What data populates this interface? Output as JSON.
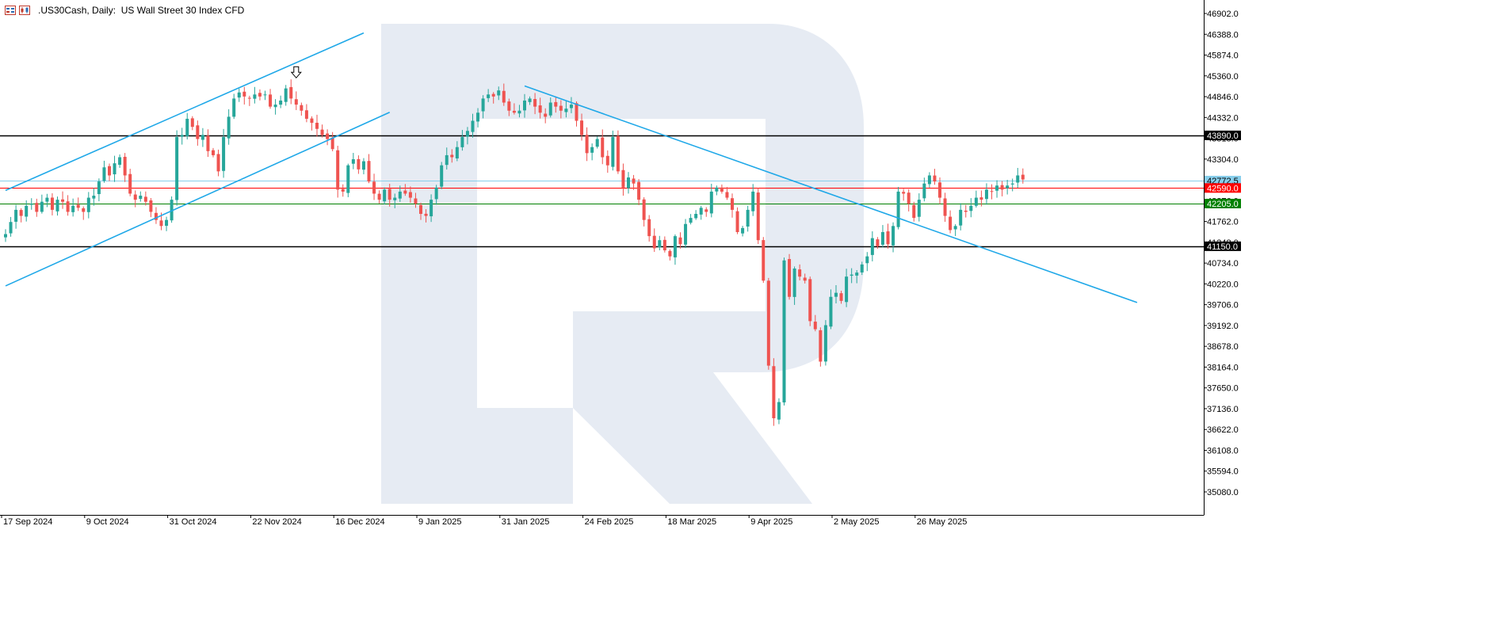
{
  "header": {
    "symbol": ".US30Cash",
    "timeframe": "Daily",
    "description": "US Wall Street 30 Index CFD",
    "title": ".US30Cash, Daily:  US Wall Street 30 Index CFD"
  },
  "colors": {
    "bull": "#26a69a",
    "bear": "#ef5350",
    "trendline": "#1fa8e8",
    "hline_black": "#000000",
    "hline_red": "#ff0000",
    "hline_green": "#008000",
    "hline_cyan": "#87ceeb",
    "watermark": "#e6ebf3",
    "axis": "#000000"
  },
  "chart_data": {
    "type": "candlestick",
    "yaxis": {
      "ticks": [
        46902.0,
        46388.0,
        45874.0,
        45360.0,
        44846.0,
        44332.0,
        43818.0,
        43304.0,
        42790.0,
        42276.0,
        41762.0,
        41248.0,
        40734.0,
        40220.0,
        39706.0,
        39192.0,
        38678.0,
        38164.0,
        37650.0,
        37136.0,
        36622.0,
        36108.0,
        35594.0,
        35080.0
      ],
      "tick_labels": [
        "46902.0",
        "46388.0",
        "45874.0",
        "45360.0",
        "44846.0",
        "44332.0",
        "43818.0",
        "43304.0",
        "42790.0",
        "42276.0",
        "41762.0",
        "41248.0",
        "40734.0",
        "40220.0",
        "39706.0",
        "39192.0",
        "38678.0",
        "38164.0",
        "37650.0",
        "37136.0",
        "36622.0",
        "36108.0",
        "35594.0",
        "35080.0"
      ]
    },
    "xaxis": {
      "labels": [
        "17 Sep 2024",
        "9 Oct 2024",
        "31 Oct 2024",
        "22 Nov 2024",
        "16 Dec 2024",
        "9 Jan 2025",
        "31 Jan 2025",
        "24 Feb 2025",
        "18 Mar 2025",
        "9 Apr 2025",
        "2 May 2025",
        "26 May 2025"
      ],
      "label_bars": [
        0,
        16,
        32,
        48,
        64,
        80,
        96,
        112,
        128,
        144,
        160,
        176
      ]
    },
    "price_levels": [
      {
        "label": "43890.0",
        "value": 43890,
        "style": "black"
      },
      {
        "label": "42772.5",
        "value": 42772.5,
        "style": "cyan"
      },
      {
        "label": "42590.0",
        "value": 42590,
        "style": "red"
      },
      {
        "label": "42205.0",
        "value": 42205,
        "style": "green"
      },
      {
        "label": "41150.0",
        "value": 41150,
        "style": "black"
      }
    ],
    "trendlines": [
      {
        "from": {
          "bar": 0,
          "price": 42530
        },
        "to": {
          "bar": 69,
          "price": 46420
        }
      },
      {
        "from": {
          "bar": 0,
          "price": 40170
        },
        "to": {
          "bar": 74,
          "price": 44460
        }
      },
      {
        "from": {
          "bar": 100,
          "price": 45110
        },
        "to": {
          "bar": 218,
          "price": 39760
        }
      }
    ],
    "annotations": [
      {
        "type": "arrow-down",
        "bar": 56,
        "price": 45350
      }
    ],
    "closes": [
      41450,
      41750,
      42050,
      41900,
      42150,
      42200,
      42000,
      42250,
      42350,
      42050,
      42300,
      42250,
      42000,
      42150,
      42100,
      42000,
      42350,
      42400,
      42750,
      43100,
      42900,
      43200,
      43350,
      42900,
      42450,
      42300,
      42400,
      42250,
      42000,
      41800,
      41650,
      41800,
      42300,
      43850,
      43900,
      44300,
      44100,
      43800,
      43900,
      43500,
      43400,
      43000,
      43850,
      44350,
      44800,
      44950,
      44850,
      44800,
      44900,
      44850,
      44900,
      44600,
      44650,
      44750,
      45050,
      44800,
      44650,
      44500,
      44300,
      44200,
      44050,
      43900,
      43800,
      43550,
      42550,
      42500,
      43150,
      43300,
      43050,
      43250,
      42750,
      42450,
      42300,
      42550,
      42300,
      42350,
      42500,
      42450,
      42350,
      42200,
      41950,
      41900,
      42300,
      42600,
      43150,
      43400,
      43350,
      43600,
      43850,
      44000,
      44250,
      44450,
      44800,
      44900,
      44850,
      45000,
      44700,
      44500,
      44450,
      44500,
      44750,
      44800,
      44600,
      44450,
      44350,
      44700,
      44600,
      44500,
      44550,
      44650,
      44250,
      43900,
      43450,
      43600,
      43800,
      43350,
      43150,
      43850,
      43000,
      42600,
      42850,
      42700,
      42300,
      41800,
      41400,
      41100,
      41300,
      41050,
      40900,
      41400,
      41200,
      41700,
      41850,
      41950,
      42100,
      42000,
      42500,
      42600,
      42500,
      42350,
      42050,
      41500,
      41600,
      42050,
      42500,
      41300,
      40300,
      38200,
      36900,
      37300,
      40800,
      39900,
      40600,
      40400,
      40300,
      39300,
      39100,
      38300,
      39200,
      39900,
      40000,
      39800,
      40400,
      40450,
      40500,
      40700,
      40900,
      41350,
      41150,
      41500,
      41200,
      41650,
      42500,
      42450,
      42200,
      41850,
      42300,
      42700,
      42900,
      42750,
      42350,
      41900,
      41550,
      41650,
      42050,
      42000,
      42150,
      42350,
      42300,
      42550,
      42500,
      42650,
      42550,
      42650,
      42700,
      42900,
      42800
    ]
  }
}
